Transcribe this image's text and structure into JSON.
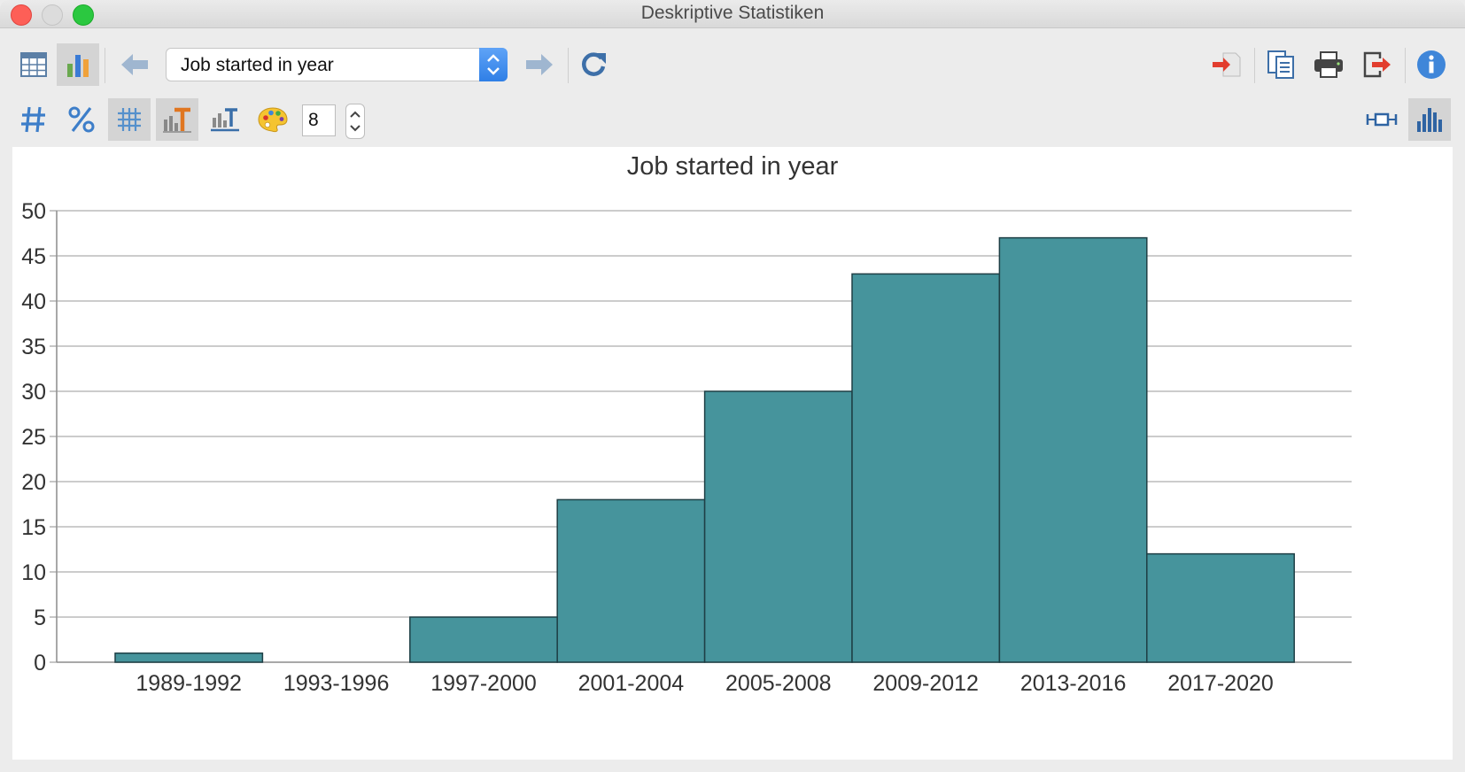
{
  "window": {
    "title": "Deskriptive Statistiken"
  },
  "toolbar": {
    "variable_select_value": "Job started in year",
    "bin_count_value": "8"
  },
  "icons": {
    "table_view": "table-icon",
    "chart_view": "bar-chart-icon",
    "prev": "arrow-left-icon",
    "next": "arrow-right-icon",
    "refresh": "refresh-icon",
    "absolute": "hash-icon",
    "percent": "percent-icon",
    "gridlines": "grid-icon",
    "data_labels": "data-labels-icon",
    "axis_labels": "axis-labels-icon",
    "palette": "palette-icon",
    "export_excel": "export-icon",
    "copy": "copy-icon",
    "print": "printer-icon",
    "exit": "exit-icon",
    "info": "info-icon",
    "boxplot": "boxplot-icon",
    "histogram": "histogram-icon"
  },
  "colors": {
    "bar_fill": "#46949c",
    "bar_stroke": "#1e3f45",
    "accent": "#2f7fe6"
  },
  "chart_data": {
    "type": "bar",
    "title": "Job started in year",
    "xlabel": "",
    "ylabel": "",
    "categories": [
      "1989-1992",
      "1993-1996",
      "1997-2000",
      "2001-2004",
      "2005-2008",
      "2009-2012",
      "2013-2016",
      "2017-2020"
    ],
    "values": [
      1,
      0,
      5,
      18,
      30,
      43,
      47,
      12
    ],
    "ylim": [
      0,
      50
    ],
    "yticks": [
      0,
      5,
      10,
      15,
      20,
      25,
      30,
      35,
      40,
      45,
      50
    ],
    "grid": true,
    "legend": "none"
  }
}
